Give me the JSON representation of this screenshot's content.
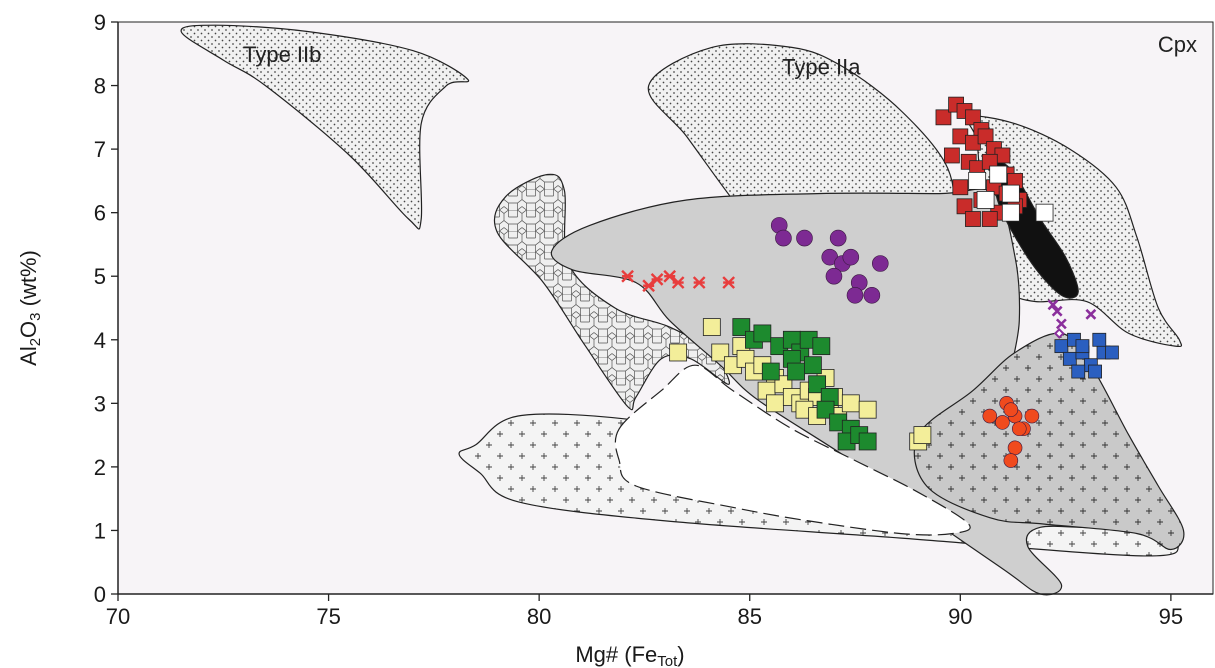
{
  "chart_data": {
    "type": "scatter",
    "title": "",
    "corner_label": "Cpx",
    "xlabel": {
      "main": "Mg# (Fe",
      "sub": "Tot",
      "end": ")"
    },
    "ylabel": {
      "pre": "Al",
      "sub1": "2",
      "mid": "O",
      "sub2": "3",
      "end": " (wt%)"
    },
    "xlim": [
      70,
      96
    ],
    "ylim": [
      0,
      9
    ],
    "x_ticks": [
      70,
      75,
      80,
      85,
      90,
      95
    ],
    "y_ticks": [
      0,
      1,
      2,
      3,
      4,
      5,
      6,
      7,
      8,
      9
    ],
    "grid": false,
    "plot_background": "#f7f4f7",
    "region_labels": [
      {
        "text": "Type IIb",
        "x": 73.9,
        "y": 8.5
      },
      {
        "text": "Type IIa",
        "x": 86.7,
        "y": 8.3
      }
    ],
    "regions": [
      {
        "pattern": "dots",
        "fill": "#f1f1f1",
        "points": [
          [
            71.5,
            8.85
          ],
          [
            72.3,
            8.95
          ],
          [
            74.5,
            8.85
          ],
          [
            77,
            8.55
          ],
          [
            78.3,
            8.1
          ],
          [
            77.8,
            8.0
          ],
          [
            77.2,
            7.4
          ],
          [
            77.2,
            5.9
          ],
          [
            76.9,
            5.9
          ],
          [
            75.5,
            6.9
          ],
          [
            73.5,
            8.0
          ],
          [
            72.5,
            8.4
          ]
        ]
      },
      {
        "pattern": "dots",
        "fill": "#f1f1f1",
        "points": [
          [
            86,
            8.6
          ],
          [
            87.2,
            8.3
          ],
          [
            88.6,
            7.6
          ],
          [
            89.7,
            6.7
          ],
          [
            89.8,
            5.8
          ],
          [
            89.3,
            4.9
          ],
          [
            88,
            4.25
          ],
          [
            86.9,
            4.4
          ],
          [
            85.9,
            5.1
          ],
          [
            84.6,
            6.2
          ],
          [
            83.5,
            7.2
          ],
          [
            82.6,
            8.0
          ],
          [
            84.1,
            8.6
          ]
        ]
      },
      {
        "pattern": "dots",
        "fill": "#f1f1f1",
        "points": [
          [
            90.2,
            7.5
          ],
          [
            91.3,
            7.4
          ],
          [
            92.6,
            7.0
          ],
          [
            93.7,
            6.4
          ],
          [
            94.2,
            5.6
          ],
          [
            94.7,
            4.5
          ],
          [
            95.2,
            4.0
          ],
          [
            95.1,
            3.9
          ],
          [
            94,
            4.1
          ],
          [
            93,
            4.6
          ],
          [
            91.8,
            4.6
          ],
          [
            91.1,
            4.75
          ],
          [
            90.7,
            5.1
          ],
          [
            90.5,
            6.0
          ],
          [
            90.4,
            7.1
          ]
        ]
      },
      {
        "pattern": "hex",
        "fill": "#efefef",
        "points": [
          [
            79.2,
            6.25
          ],
          [
            80.2,
            6.6
          ],
          [
            80.6,
            6.35
          ],
          [
            80.7,
            5.2
          ],
          [
            81.8,
            4.5
          ],
          [
            83.1,
            4.2
          ],
          [
            84.1,
            3.8
          ],
          [
            84.5,
            3.3
          ],
          [
            83.6,
            3.7
          ],
          [
            82.9,
            3.7
          ],
          [
            82.3,
            3.1
          ],
          [
            82.1,
            2.95
          ],
          [
            81.1,
            3.9
          ],
          [
            80.1,
            4.9
          ],
          [
            79.0,
            5.7
          ]
        ]
      },
      {
        "pattern": "plus",
        "fill": "#f4f4f4",
        "points": [
          [
            78.5,
            2.35
          ],
          [
            79.5,
            2.8
          ],
          [
            82.1,
            2.75
          ],
          [
            84.8,
            2.4
          ],
          [
            88.4,
            2.15
          ],
          [
            90.6,
            2.2
          ],
          [
            93.2,
            1.9
          ],
          [
            94.9,
            1.2
          ],
          [
            95.2,
            0.8
          ],
          [
            94.3,
            0.6
          ],
          [
            88.6,
            0.88
          ],
          [
            83,
            1.15
          ],
          [
            79.5,
            1.45
          ],
          [
            78.6,
            1.9
          ],
          [
            78.1,
            2.2
          ]
        ]
      },
      {
        "pattern": "solid",
        "fill": "#cfcfcf",
        "points": [
          [
            80.3,
            5.4
          ],
          [
            81.2,
            5.8
          ],
          [
            83.5,
            6.2
          ],
          [
            86.6,
            6.3
          ],
          [
            89.5,
            6.3
          ],
          [
            90.8,
            6.3
          ],
          [
            91.3,
            5.3
          ],
          [
            91.4,
            4.3
          ],
          [
            91.2,
            3.5
          ],
          [
            91.3,
            3.4
          ],
          [
            92.3,
            3.9
          ],
          [
            93.3,
            2.9
          ],
          [
            94.5,
            1.9
          ],
          [
            94.2,
            1.25
          ],
          [
            93.4,
            1.05
          ],
          [
            91.9,
            1.05
          ],
          [
            91.6,
            0.75
          ],
          [
            92.4,
            0.15
          ],
          [
            91.9,
            0.0
          ],
          [
            91,
            0.4
          ],
          [
            88.6,
            1.5
          ],
          [
            87.3,
            2.15
          ],
          [
            85.2,
            3.05
          ],
          [
            84.3,
            3.6
          ],
          [
            83.1,
            4.3
          ],
          [
            82.3,
            4.9
          ],
          [
            80.8,
            5.1
          ]
        ]
      },
      {
        "pattern": "plus-dense",
        "fill": "#c9c9c9",
        "points": [
          [
            89,
            2.5
          ],
          [
            90.3,
            3.2
          ],
          [
            91.3,
            3.8
          ],
          [
            92.4,
            4.1
          ],
          [
            93.1,
            3.6
          ],
          [
            94,
            2.5
          ],
          [
            94.7,
            1.7
          ],
          [
            95.3,
            1.0
          ],
          [
            95,
            0.7
          ],
          [
            94.2,
            0.95
          ],
          [
            92,
            1.1
          ],
          [
            90.7,
            1.2
          ],
          [
            89.2,
            1.7
          ]
        ]
      },
      {
        "pattern": "white",
        "fill": "#ffffff",
        "points": [
          [
            81.9,
            2.6
          ],
          [
            82.9,
            3.2
          ],
          [
            83.7,
            3.6
          ],
          [
            84.6,
            3.2
          ],
          [
            86,
            2.6
          ],
          [
            87.5,
            2.1
          ],
          [
            89,
            1.6
          ],
          [
            90.2,
            1.1
          ],
          [
            89.8,
            0.95
          ],
          [
            88.6,
            0.95
          ],
          [
            86.4,
            1.15
          ],
          [
            84.7,
            1.35
          ],
          [
            82.3,
            1.7
          ],
          [
            81.9,
            2.1
          ]
        ]
      },
      {
        "pattern": "black",
        "fill": "#111111",
        "points": [
          [
            90.9,
            6.8
          ],
          [
            91.3,
            6.6
          ],
          [
            91.9,
            5.9
          ],
          [
            92.5,
            5.3
          ],
          [
            92.8,
            4.75
          ],
          [
            92.4,
            4.7
          ],
          [
            91.7,
            5.2
          ],
          [
            91.0,
            6.0
          ],
          [
            90.8,
            6.5
          ]
        ]
      }
    ],
    "series": [
      {
        "marker": "square",
        "color": "#c92c2a",
        "size": 15,
        "x": [
          89.6,
          89.9,
          90.1,
          90.3,
          90.5,
          90.0,
          90.3,
          90.6,
          90.8,
          91.0,
          89.8,
          90.2,
          90.4,
          90.7,
          91.1,
          91.3,
          90.0,
          90.4,
          90.8,
          91.2,
          91.4,
          90.1,
          90.5,
          90.9,
          91.3,
          90.3,
          90.7,
          91.1
        ],
        "y": [
          7.5,
          7.7,
          7.6,
          7.5,
          7.3,
          7.2,
          7.1,
          7.2,
          7.0,
          6.9,
          6.9,
          6.8,
          6.7,
          6.8,
          6.6,
          6.5,
          6.4,
          6.5,
          6.4,
          6.3,
          6.2,
          6.1,
          6.2,
          6.0,
          6.1,
          5.9,
          5.9,
          6.3
        ]
      },
      {
        "marker": "square",
        "color": "#ffffff",
        "size": 17,
        "x": [
          90.4,
          90.9,
          90.6,
          91.2,
          91.2,
          92.0
        ],
        "y": [
          6.5,
          6.6,
          6.2,
          6.3,
          6.0,
          6.0
        ]
      },
      {
        "marker": "circle",
        "color": "#7d2a93",
        "size": 16,
        "x": [
          85.7,
          85.8,
          86.3,
          87.1,
          86.9,
          87.2,
          87.4,
          87.0,
          87.6,
          88.1,
          87.5,
          87.9
        ],
        "y": [
          5.8,
          5.6,
          5.6,
          5.6,
          5.3,
          5.2,
          5.3,
          5.0,
          4.9,
          5.2,
          4.7,
          4.7
        ]
      },
      {
        "marker": "asterisk",
        "color": "#e83d3d",
        "size": 11,
        "x": [
          82.1,
          82.6,
          82.8,
          83.1,
          83.3,
          83.8,
          84.5
        ],
        "y": [
          5.0,
          4.85,
          4.95,
          5.0,
          4.9,
          4.9,
          4.9
        ]
      },
      {
        "marker": "square",
        "color": "#f3ee9a",
        "size": 17,
        "x": [
          83.3,
          84.1,
          84.3,
          84.6,
          84.8,
          84.9,
          85.1,
          85.3,
          85.6,
          85.4,
          85.8,
          85.6,
          86.0,
          86.2,
          86.4,
          86.6,
          86.3,
          86.8,
          86.9,
          86.6,
          87.0,
          87.1,
          87.4,
          87.8,
          89.0,
          89.1
        ],
        "y": [
          3.8,
          4.2,
          3.8,
          3.6,
          3.9,
          3.7,
          3.5,
          3.6,
          3.4,
          3.2,
          3.3,
          3.0,
          3.1,
          3.0,
          3.2,
          3.1,
          2.9,
          3.4,
          3.0,
          2.8,
          3.1,
          2.8,
          3.0,
          2.9,
          2.4,
          2.5
        ]
      },
      {
        "marker": "square",
        "color": "#1d8a2e",
        "size": 17,
        "x": [
          84.8,
          85.1,
          85.3,
          85.7,
          86.0,
          86.2,
          86.4,
          86.7,
          85.5,
          86.0,
          86.5,
          86.1,
          86.6,
          86.9,
          86.8,
          87.1,
          87.4,
          87.3,
          87.6,
          87.8
        ],
        "y": [
          4.2,
          4.0,
          4.1,
          3.9,
          4.0,
          3.8,
          4.0,
          3.9,
          3.5,
          3.7,
          3.6,
          3.5,
          3.3,
          3.1,
          2.9,
          2.7,
          2.6,
          2.4,
          2.5,
          2.4
        ]
      },
      {
        "marker": "square",
        "color": "#2b5fc0",
        "size": 13,
        "x": [
          92.4,
          92.7,
          92.6,
          92.9,
          93.1,
          93.4,
          92.8,
          93.2,
          93.6,
          92.9,
          93.3
        ],
        "y": [
          3.9,
          4.0,
          3.7,
          3.8,
          3.6,
          3.8,
          3.5,
          3.5,
          3.8,
          3.9,
          4.0
        ]
      },
      {
        "marker": "circle",
        "color": "#f04a1e",
        "size": 14,
        "x": [
          90.7,
          91.1,
          91.0,
          91.3,
          91.5,
          91.7,
          91.2,
          91.4,
          91.3,
          91.2
        ],
        "y": [
          2.8,
          3.0,
          2.7,
          2.8,
          2.6,
          2.8,
          2.9,
          2.6,
          2.3,
          2.1
        ]
      },
      {
        "marker": "x",
        "color": "#8b2f9c",
        "size": 9,
        "x": [
          92.2,
          92.3,
          92.4,
          93.1
        ],
        "y": [
          4.55,
          4.45,
          4.25,
          4.4
        ]
      },
      {
        "marker": "diamond",
        "color": "#8b2f9c",
        "size": 8,
        "x": [
          92.35
        ],
        "y": [
          4.1
        ]
      }
    ]
  }
}
